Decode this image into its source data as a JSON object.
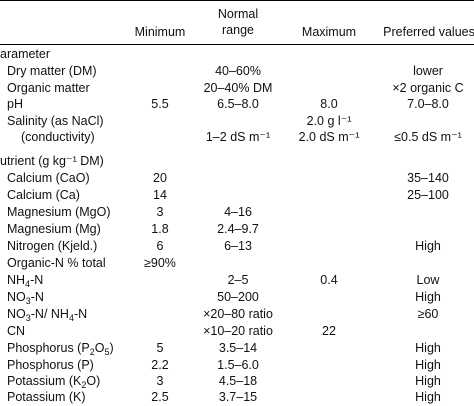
{
  "headers": {
    "minimum": "Minimum",
    "normal_line1": "Normal",
    "normal_line2": "range",
    "maximum": "Maximum",
    "preferred": "Preferred values"
  },
  "sections": {
    "parameter": "arameter",
    "nutrient": "utrient (g kg⁻¹ DM)"
  },
  "rows": {
    "dm": {
      "name": "Dry matter (DM)",
      "normal": "40–60%",
      "pref": "lower"
    },
    "om": {
      "name": "Organic matter",
      "normal": "20–40% DM",
      "pref": "×2 organic C"
    },
    "ph": {
      "name": "pH",
      "min": "5.5",
      "normal": "6.5–8.0",
      "max": "8.0",
      "pref": "7.0–8.0"
    },
    "sal1": {
      "name": "Salinity (as NaCl)",
      "max": "2.0 g l⁻¹"
    },
    "sal2": {
      "name": "(conductivity)",
      "normal": "1–2 dS m⁻¹",
      "max": "2.0 dS m⁻¹",
      "pref": "≤0.5 dS m⁻¹"
    },
    "cao": {
      "name": "Calcium (CaO)",
      "min": "20",
      "pref": "35–140"
    },
    "ca": {
      "name": "Calcium (Ca)",
      "min": "14",
      "pref": "25–100"
    },
    "mgo": {
      "name": "Magnesium (MgO)",
      "min": "3",
      "normal": "4–16"
    },
    "mg": {
      "name": "Magnesium (Mg)",
      "min": "1.8",
      "normal": "2.4–9.7"
    },
    "nk": {
      "name": "Nitrogen (Kjeld.)",
      "min": "6",
      "normal": "6–13",
      "pref": "High"
    },
    "orgn": {
      "name": "Organic-N % total",
      "min": "≥90%"
    },
    "nh4": {
      "name_a": "NH",
      "name_sub": "4",
      "name_b": "-N",
      "normal": "2–5",
      "max": "0.4",
      "pref": "Low"
    },
    "no3": {
      "name_a": "NO",
      "name_sub": "3",
      "name_b": "-N",
      "normal": "50–200",
      "pref": "High"
    },
    "ratio": {
      "name_a": "NO",
      "name_sub": "3",
      "name_b": "-N/ NH",
      "name_sub2": "4",
      "name_c": "-N",
      "normal": "×20–80 ratio",
      "pref": "≥60"
    },
    "cn": {
      "name": "CN",
      "normal": "×10–20 ratio",
      "max": "22"
    },
    "p2o5": {
      "name_a": "Phosphorus (P",
      "name_sub": "2",
      "name_b": "O",
      "name_sub2": "5",
      "name_c": ")",
      "min": "5",
      "normal": "3.5–14",
      "pref": "High"
    },
    "p": {
      "name": "Phosphorus (P)",
      "min": "2.2",
      "normal": "1.5–6.0",
      "pref": "High"
    },
    "k2o": {
      "name_a": "Potassium (K",
      "name_sub": "2",
      "name_b": "O)",
      "min": "3",
      "normal": "4.5–18",
      "pref": "High"
    },
    "k": {
      "name": "Potassium (K)",
      "min": "2.5",
      "normal": "3.7–15",
      "pref": "High"
    }
  }
}
